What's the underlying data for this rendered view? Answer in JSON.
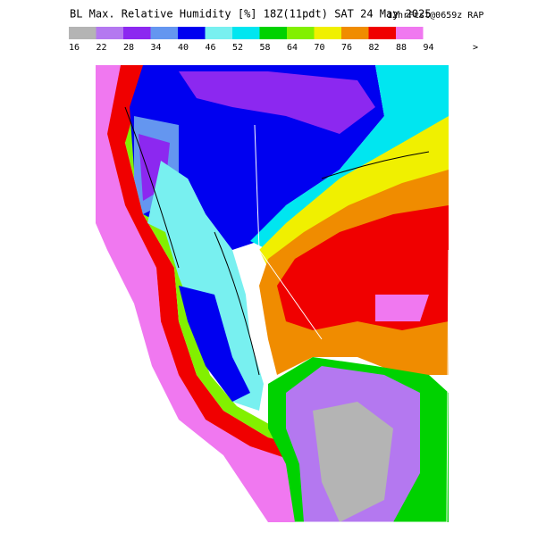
{
  "header": {
    "title": "BL Max. Relative Humidity [%] 18Z(11pdt) SAT 24 May 2025",
    "forecast": "12hrFcst@0659z RAP"
  },
  "legend": {
    "colors": [
      "#b4b4b4",
      "#b478f0",
      "#8c28f0",
      "#6496f0",
      "#0000f0",
      "#78f0f0",
      "#00e6f0",
      "#00d200",
      "#82f000",
      "#f0f000",
      "#f08c00",
      "#f00000",
      "#f078f0"
    ],
    "labels": [
      "16",
      "22",
      "28",
      "34",
      "40",
      "46",
      "52",
      "58",
      "64",
      "70",
      "76",
      "82",
      "88",
      "94",
      ">"
    ]
  }
}
